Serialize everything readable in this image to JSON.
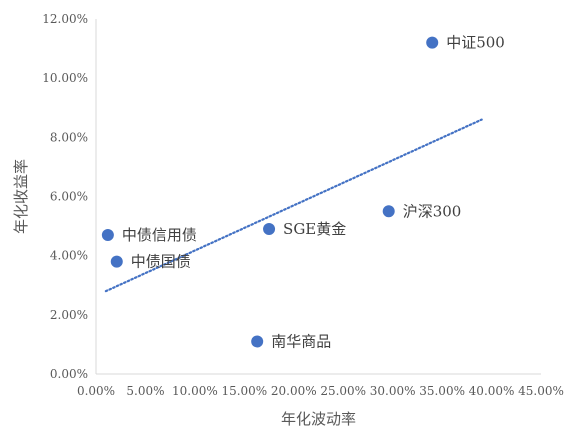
{
  "chart_data": {
    "type": "scatter",
    "title": "",
    "xlabel": "年化波动率",
    "ylabel": "年化收益率",
    "xlim": [
      0,
      0.45
    ],
    "ylim": [
      0,
      0.12
    ],
    "x_ticks": [
      "0.00%",
      "5.00%",
      "10.00%",
      "15.00%",
      "20.00%",
      "25.00%",
      "30.00%",
      "35.00%",
      "40.00%",
      "45.00%"
    ],
    "y_ticks": [
      "0.00%",
      "2.00%",
      "4.00%",
      "6.00%",
      "8.00%",
      "10.00%",
      "12.00%"
    ],
    "grid": false,
    "marker_color": "#4472C4",
    "trendline": {
      "style": "dotted",
      "color": "#4472C4",
      "x": [
        0.01,
        0.39
      ],
      "y": [
        0.028,
        0.086
      ]
    },
    "points": [
      {
        "label": "中证500",
        "x": 0.34,
        "y": 0.112
      },
      {
        "label": "沪深300",
        "x": 0.296,
        "y": 0.055
      },
      {
        "label": "SGE黄金",
        "x": 0.175,
        "y": 0.049
      },
      {
        "label": "中债信用债",
        "x": 0.012,
        "y": 0.047
      },
      {
        "label": "中债国债",
        "x": 0.021,
        "y": 0.038
      },
      {
        "label": "南华商品",
        "x": 0.163,
        "y": 0.011
      }
    ]
  }
}
